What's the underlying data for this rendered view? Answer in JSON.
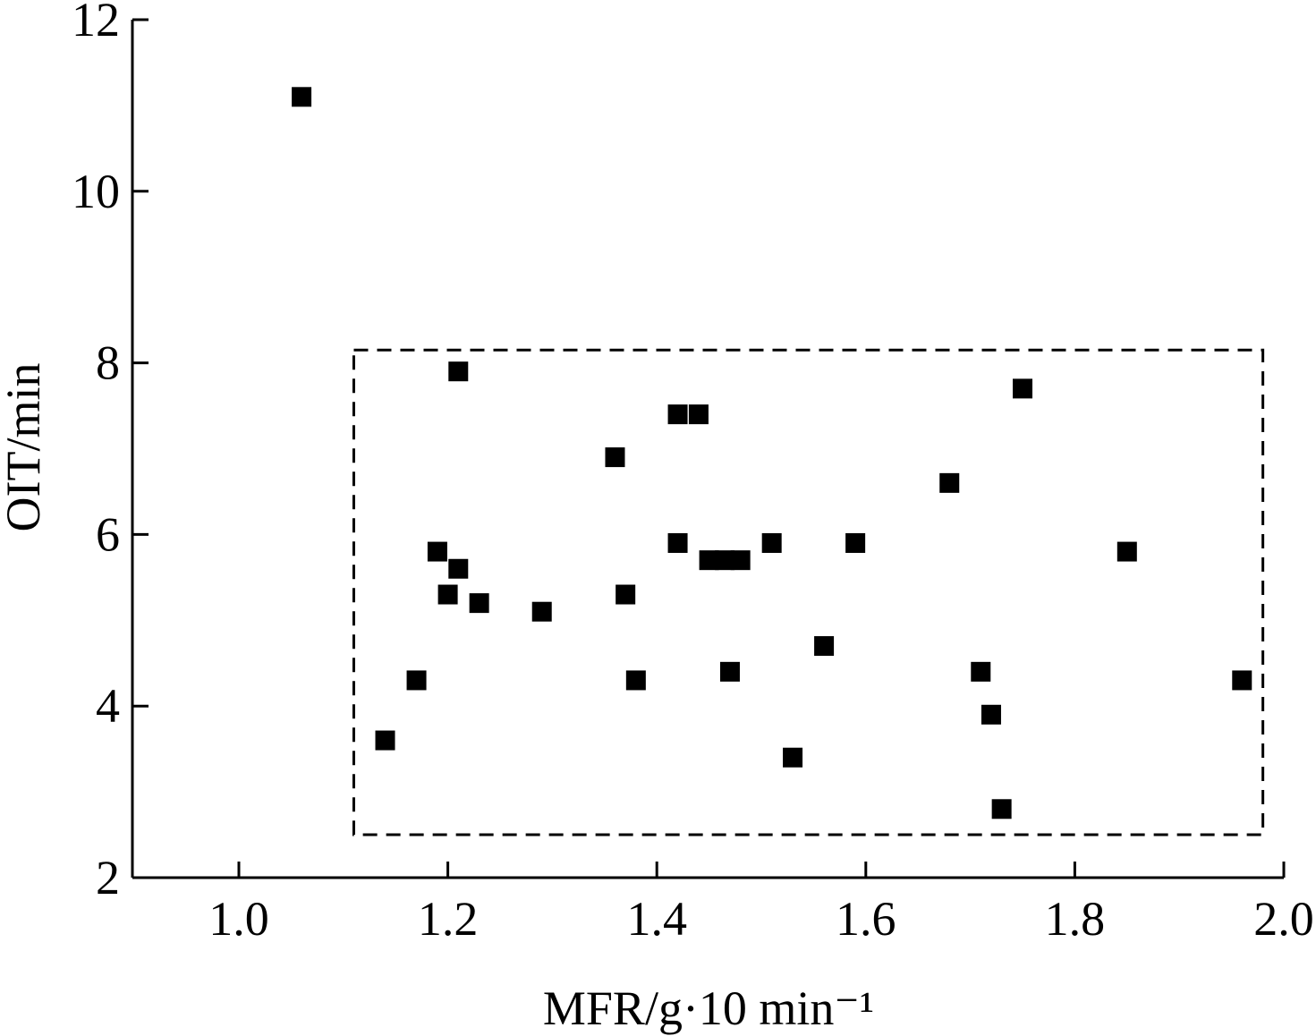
{
  "chart_data": {
    "type": "scatter",
    "title": "",
    "xlabel": "MFR/g·10 min⁻¹",
    "ylabel": "OIT/min",
    "xlim": [
      0.9,
      2.0
    ],
    "ylim": [
      2,
      12
    ],
    "x_ticks": [
      "1.0",
      "1.2",
      "1.4",
      "1.6",
      "1.8",
      "2.0"
    ],
    "y_ticks": [
      "2",
      "4",
      "6",
      "8",
      "10",
      "12"
    ],
    "grid": false,
    "legend": "none",
    "marker": "filled-square",
    "marker_color": "#000000",
    "highlight_box": {
      "style": "dashed",
      "x_range": [
        1.11,
        1.98
      ],
      "y_range": [
        2.5,
        8.15
      ]
    },
    "points": [
      {
        "x": 1.06,
        "y": 11.1
      },
      {
        "x": 1.21,
        "y": 7.9
      },
      {
        "x": 1.75,
        "y": 7.7
      },
      {
        "x": 1.42,
        "y": 7.4
      },
      {
        "x": 1.44,
        "y": 7.4
      },
      {
        "x": 1.36,
        "y": 6.9
      },
      {
        "x": 1.68,
        "y": 6.6
      },
      {
        "x": 1.42,
        "y": 5.9
      },
      {
        "x": 1.51,
        "y": 5.9
      },
      {
        "x": 1.59,
        "y": 5.9
      },
      {
        "x": 1.19,
        "y": 5.8
      },
      {
        "x": 1.85,
        "y": 5.8
      },
      {
        "x": 1.45,
        "y": 5.7
      },
      {
        "x": 1.465,
        "y": 5.7
      },
      {
        "x": 1.48,
        "y": 5.7
      },
      {
        "x": 1.21,
        "y": 5.6
      },
      {
        "x": 1.2,
        "y": 5.3
      },
      {
        "x": 1.37,
        "y": 5.3
      },
      {
        "x": 1.23,
        "y": 5.2
      },
      {
        "x": 1.29,
        "y": 5.1
      },
      {
        "x": 1.56,
        "y": 4.7
      },
      {
        "x": 1.47,
        "y": 4.4
      },
      {
        "x": 1.71,
        "y": 4.4
      },
      {
        "x": 1.17,
        "y": 4.3
      },
      {
        "x": 1.38,
        "y": 4.3
      },
      {
        "x": 1.96,
        "y": 4.3
      },
      {
        "x": 1.72,
        "y": 3.9
      },
      {
        "x": 1.14,
        "y": 3.6
      },
      {
        "x": 1.53,
        "y": 3.4
      },
      {
        "x": 1.73,
        "y": 2.8
      }
    ]
  }
}
